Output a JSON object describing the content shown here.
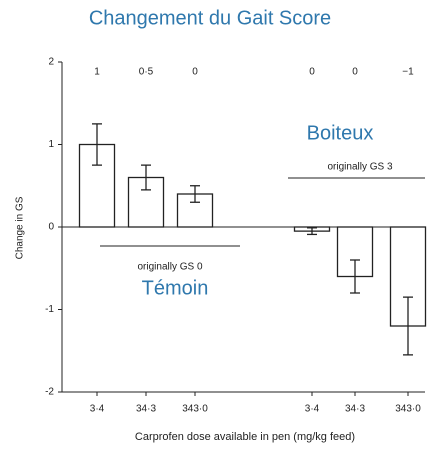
{
  "chart_data": {
    "type": "bar",
    "title": "Changement du Gait Score",
    "ylabel": "Change in GS",
    "xlabel": "Carprofen dose available in pen (mg/kg feed)",
    "categories": [
      "3·4",
      "34·3",
      "343·0",
      "3·4",
      "34·3",
      "343·0"
    ],
    "values": [
      1.0,
      0.6,
      0.4,
      -0.05,
      -0.6,
      -1.2
    ],
    "errors": [
      0.25,
      0.15,
      0.1,
      0.04,
      0.2,
      0.35
    ],
    "top_labels": [
      "1",
      "0·5",
      "0",
      "0",
      "0",
      "−1"
    ],
    "group_labels": [
      "originally GS 0",
      "originally GS 3"
    ],
    "group_names": [
      "Témoin",
      "Boiteux"
    ],
    "color": "#ffffff",
    "ylim": [
      -2,
      2
    ],
    "yticks": [
      2,
      1,
      0,
      -1,
      -2
    ]
  }
}
